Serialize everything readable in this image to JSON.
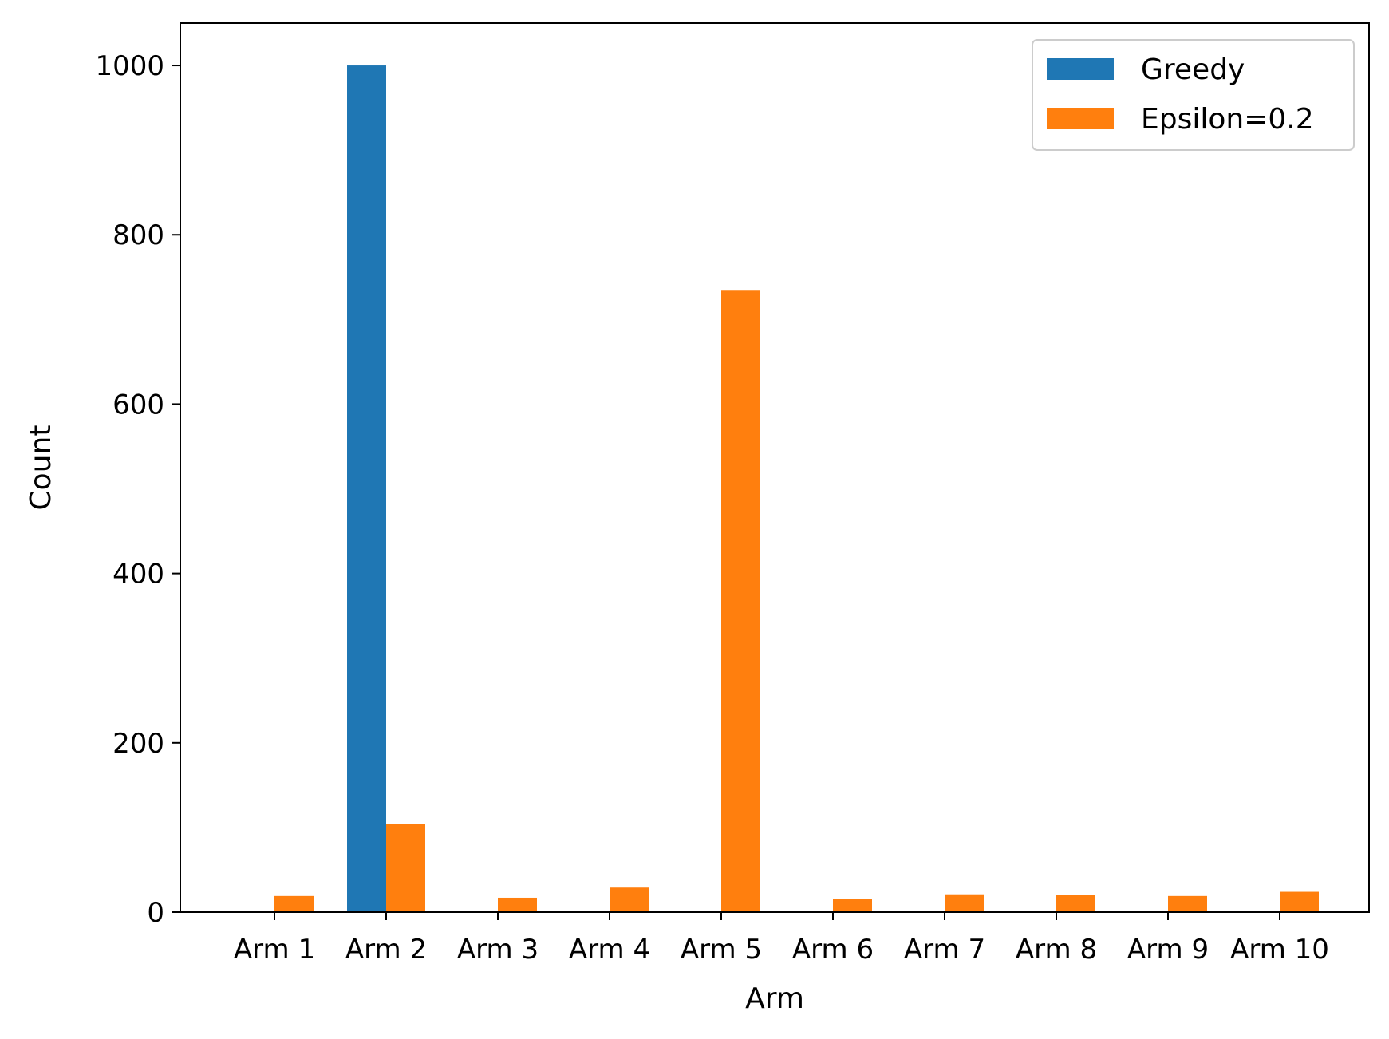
{
  "chart_data": {
    "type": "bar",
    "title": "",
    "xlabel": "Arm",
    "ylabel": "Count",
    "categories": [
      "Arm 1",
      "Arm 2",
      "Arm 3",
      "Arm 4",
      "Arm 5",
      "Arm 6",
      "Arm 7",
      "Arm 8",
      "Arm 9",
      "Arm 10"
    ],
    "series": [
      {
        "name": "Greedy",
        "color": "#1f77b4",
        "values": [
          0,
          1000,
          0,
          0,
          0,
          0,
          0,
          0,
          0,
          0
        ]
      },
      {
        "name": "Epsilon=0.2",
        "color": "#ff7f0e",
        "values": [
          19,
          104,
          17,
          29,
          734,
          16,
          21,
          20,
          19,
          24
        ]
      }
    ],
    "ylim": [
      0,
      1050
    ],
    "yticks": [
      0,
      200,
      400,
      600,
      800,
      1000
    ],
    "grid": false,
    "legend_position": "top-right"
  }
}
